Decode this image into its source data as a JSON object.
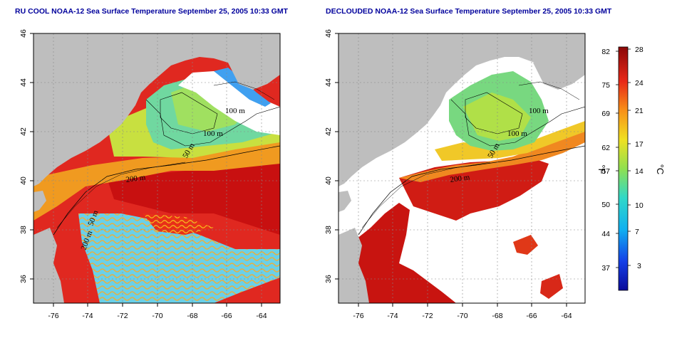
{
  "titles": {
    "left": "RU COOL NOAA-12 Sea Surface Temperature September 25, 2005 10:33 GMT",
    "right": "DECLOUDED NOAA-12 Sea Surface Temperature September 25, 2005 10:33 GMT"
  },
  "axes": {
    "lon_ticks": [
      "-76",
      "-74",
      "-72",
      "-70",
      "-68",
      "-66",
      "-64"
    ],
    "lat_ticks": [
      "46",
      "44",
      "42",
      "40",
      "38",
      "36"
    ]
  },
  "contour_labels": {
    "left": [
      "100 m",
      "100 m",
      "50 m",
      "200 m",
      "200 m",
      "50 m"
    ],
    "right": [
      "100 m",
      "100 m",
      "50 m",
      "200 m"
    ]
  },
  "colorbar": {
    "fahrenheit_ticks": [
      "82",
      "75",
      "69",
      "62",
      "57",
      "50",
      "44",
      "37"
    ],
    "celsius_ticks": [
      "28",
      "24",
      "21",
      "17",
      "14",
      "10",
      "7",
      "3"
    ],
    "fahrenheit_label": "°F",
    "celsius_label": "°C"
  },
  "colors": {
    "land": "#bebebe",
    "warm": "#d81818",
    "mid": "#f0d030",
    "cool": "#40c8e0",
    "cold": "#1050e0",
    "nodata": "#ffffff"
  }
}
